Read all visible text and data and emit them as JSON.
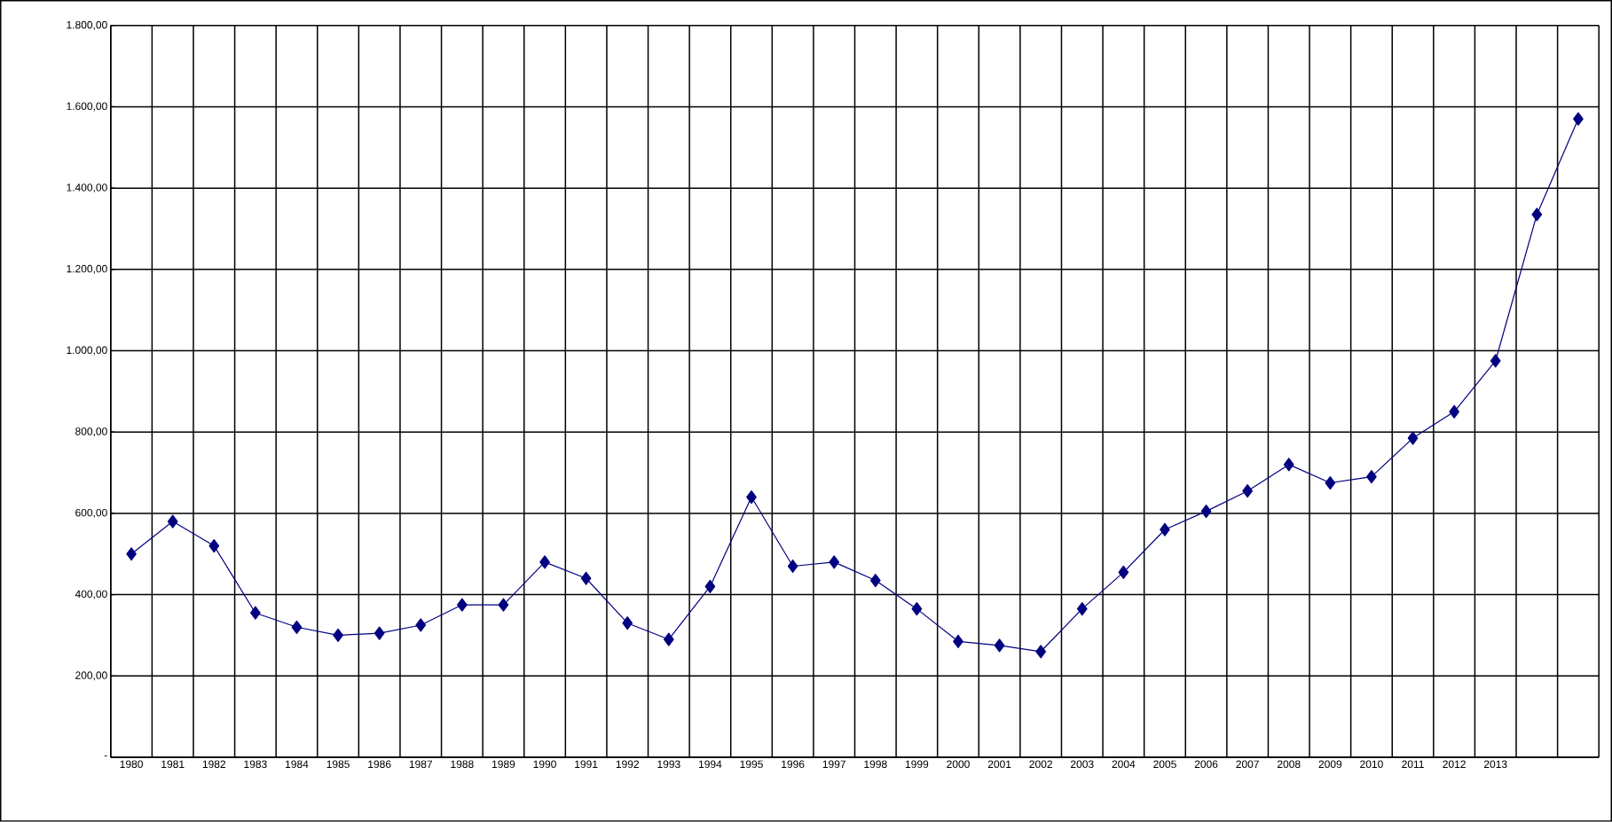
{
  "chart_data": {
    "type": "line",
    "categories": [
      "1980",
      "1981",
      "1982",
      "1983",
      "1984",
      "1985",
      "1986",
      "1987",
      "1988",
      "1989",
      "1990",
      "1991",
      "1992",
      "1993",
      "1994",
      "1995",
      "1996",
      "1997",
      "1998",
      "1999",
      "2000",
      "2001",
      "2002",
      "2003",
      "2004",
      "2005",
      "2006",
      "2007",
      "2008",
      "2009",
      "2010",
      "2011",
      "2012",
      "2013",
      null,
      null
    ],
    "series": [
      {
        "color": "#000080",
        "values": [
          500,
          580,
          520,
          355,
          320,
          300,
          305,
          325,
          375,
          375,
          480,
          440,
          330,
          290,
          420,
          640,
          470,
          480,
          435,
          365,
          285,
          275,
          260,
          365,
          455,
          560,
          605,
          655,
          720,
          675,
          690,
          785,
          850,
          975,
          1335,
          1570
        ]
      }
    ],
    "ylim": [
      0,
      1800
    ],
    "yticks": [
      {
        "value": 0,
        "label": "-"
      },
      {
        "value": 200,
        "label": "200,00"
      },
      {
        "value": 400,
        "label": "400,00"
      },
      {
        "value": 600,
        "label": "600,00"
      },
      {
        "value": 800,
        "label": "800,00"
      },
      {
        "value": 1000,
        "label": "1.000,00"
      },
      {
        "value": 1200,
        "label": "1.200,00"
      },
      {
        "value": 1400,
        "label": "1.400,00"
      },
      {
        "value": 1600,
        "label": "1.600,00"
      },
      {
        "value": 1800,
        "label": "1.800,00"
      }
    ],
    "grid": true,
    "marker": "diamond",
    "line_style": "solid"
  }
}
